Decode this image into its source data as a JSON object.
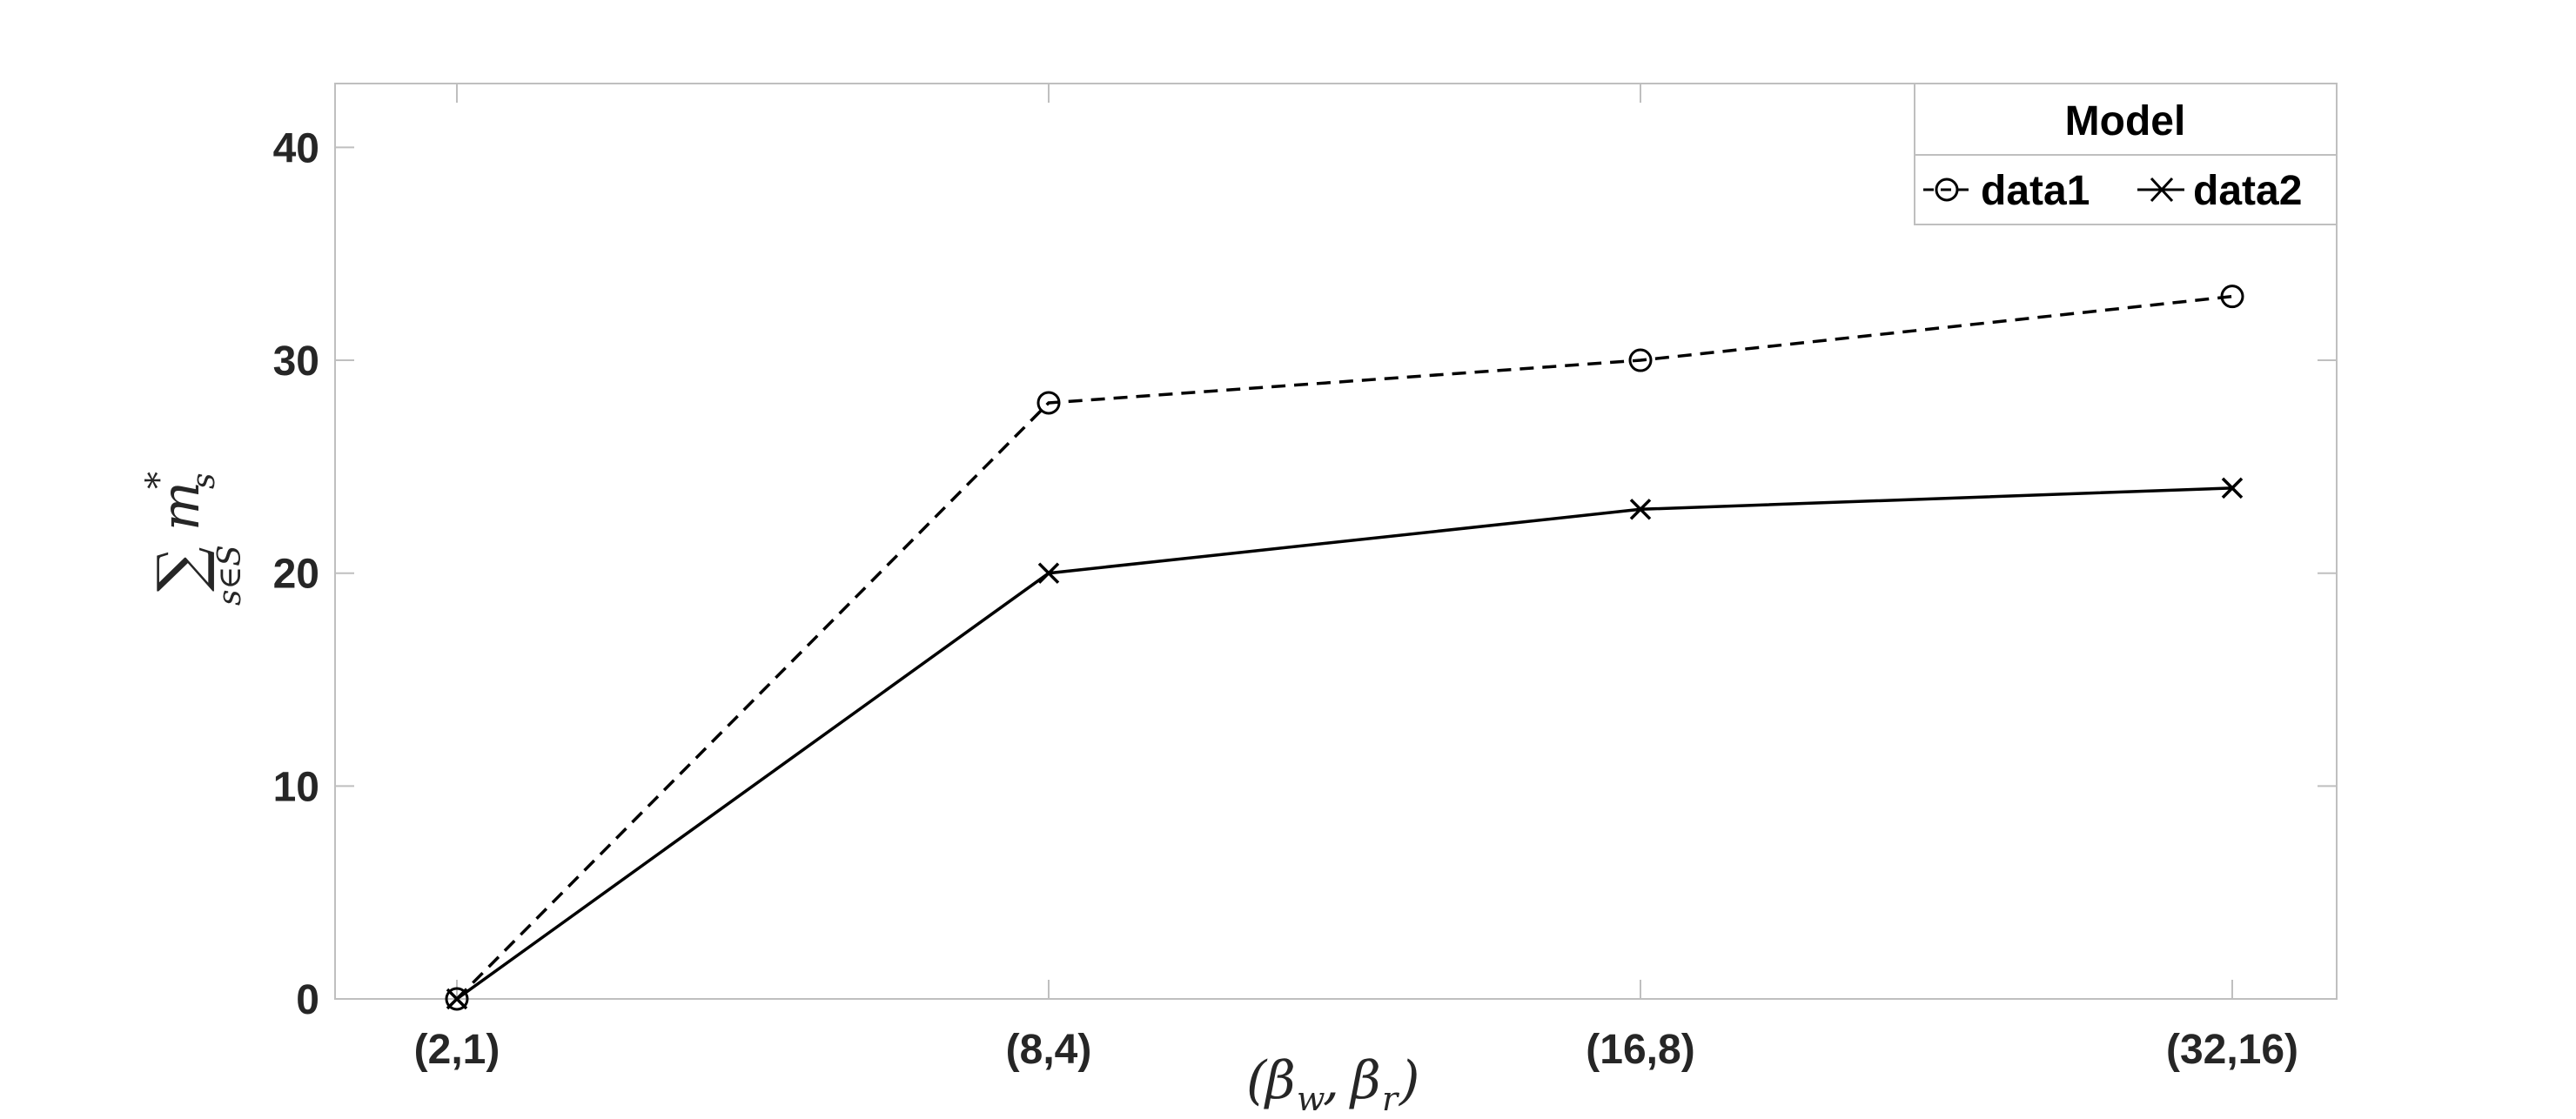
{
  "chart_data": {
    "type": "line",
    "categories": [
      "(2,1)",
      "(8,4)",
      "(16,8)",
      "(32,16)"
    ],
    "series": [
      {
        "name": "data1",
        "values": [
          0,
          28,
          30,
          33
        ],
        "marker": "circle",
        "line": "dashed",
        "color": "#000000"
      },
      {
        "name": "data2",
        "values": [
          0,
          20,
          23,
          24
        ],
        "marker": "x",
        "line": "solid",
        "color": "#000000"
      }
    ],
    "xlabel": "(βw, βr)",
    "ylabel": "∑ s∈S m*s",
    "ylim": [
      0,
      43
    ],
    "yticks": [
      0,
      10,
      20,
      30,
      40
    ],
    "grid": false,
    "legend": {
      "title": "Model",
      "placement": "top-right",
      "orientation": "horizontal"
    }
  }
}
